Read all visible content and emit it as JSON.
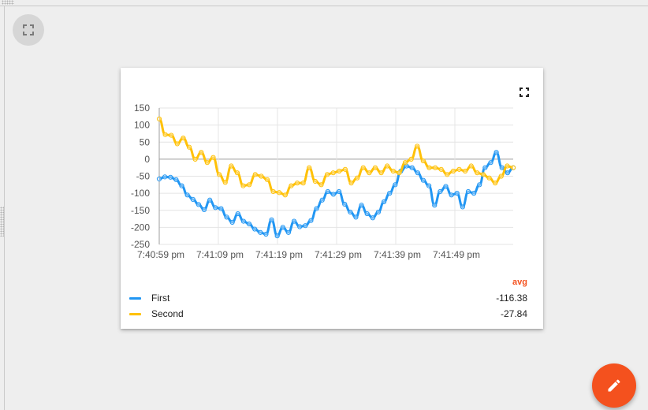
{
  "page": {
    "fullscreen_icon": "fullscreen-icon",
    "fab_icon": "edit-pencil-icon",
    "fab_color": "#f4511e"
  },
  "widget": {
    "fullscreen_icon": "fullscreen-icon",
    "legend": {
      "header": "avg",
      "header_color": "#f4511e",
      "items": [
        {
          "name": "First",
          "value": "-116.38",
          "color": "#2196f3"
        },
        {
          "name": "Second",
          "value": "-27.84",
          "color": "#ffc107"
        }
      ]
    }
  },
  "chart_data": {
    "type": "line",
    "ylim": [
      -250,
      150
    ],
    "y_ticks": [
      "150",
      "100",
      "50",
      "0",
      "-50",
      "-100",
      "-150",
      "-200",
      "-250"
    ],
    "x_tick_labels": [
      "7:40:59 pm",
      "7:41:09 pm",
      "7:41:19 pm",
      "7:41:29 pm",
      "7:41:39 pm",
      "7:41:49 pm"
    ],
    "grid": true,
    "series": [
      {
        "name": "First",
        "color": "#2196f3",
        "values": [
          -58,
          -52,
          -53,
          -60,
          -78,
          -105,
          -118,
          -133,
          -148,
          -120,
          -142,
          -145,
          -170,
          -185,
          -160,
          -182,
          -190,
          -205,
          -215,
          -220,
          -178,
          -225,
          -200,
          -215,
          -182,
          -198,
          -195,
          -180,
          -145,
          -120,
          -95,
          -103,
          -95,
          -132,
          -155,
          -170,
          -135,
          -160,
          -172,
          -155,
          -125,
          -100,
          -75,
          -35,
          -20,
          -25,
          -40,
          -62,
          -78,
          -135,
          -95,
          -80,
          -105,
          -100,
          -140,
          -95,
          -100,
          -75,
          -25,
          -10,
          20,
          -25,
          -40,
          -25
        ]
      },
      {
        "name": "Second",
        "color": "#ffc107",
        "values": [
          118,
          72,
          70,
          45,
          62,
          35,
          0,
          20,
          -10,
          5,
          -45,
          -68,
          -20,
          -40,
          -78,
          -75,
          -45,
          -50,
          -60,
          -95,
          -98,
          -105,
          -78,
          -70,
          -70,
          -25,
          -65,
          -75,
          -45,
          -40,
          -35,
          -30,
          -70,
          -55,
          -25,
          -40,
          -25,
          -40,
          -20,
          -35,
          -40,
          -10,
          0,
          38,
          -5,
          -25,
          -25,
          -30,
          -45,
          -35,
          -30,
          -35,
          -20,
          -40,
          -45,
          -55,
          -70,
          -50,
          -20,
          -25
        ]
      }
    ]
  }
}
